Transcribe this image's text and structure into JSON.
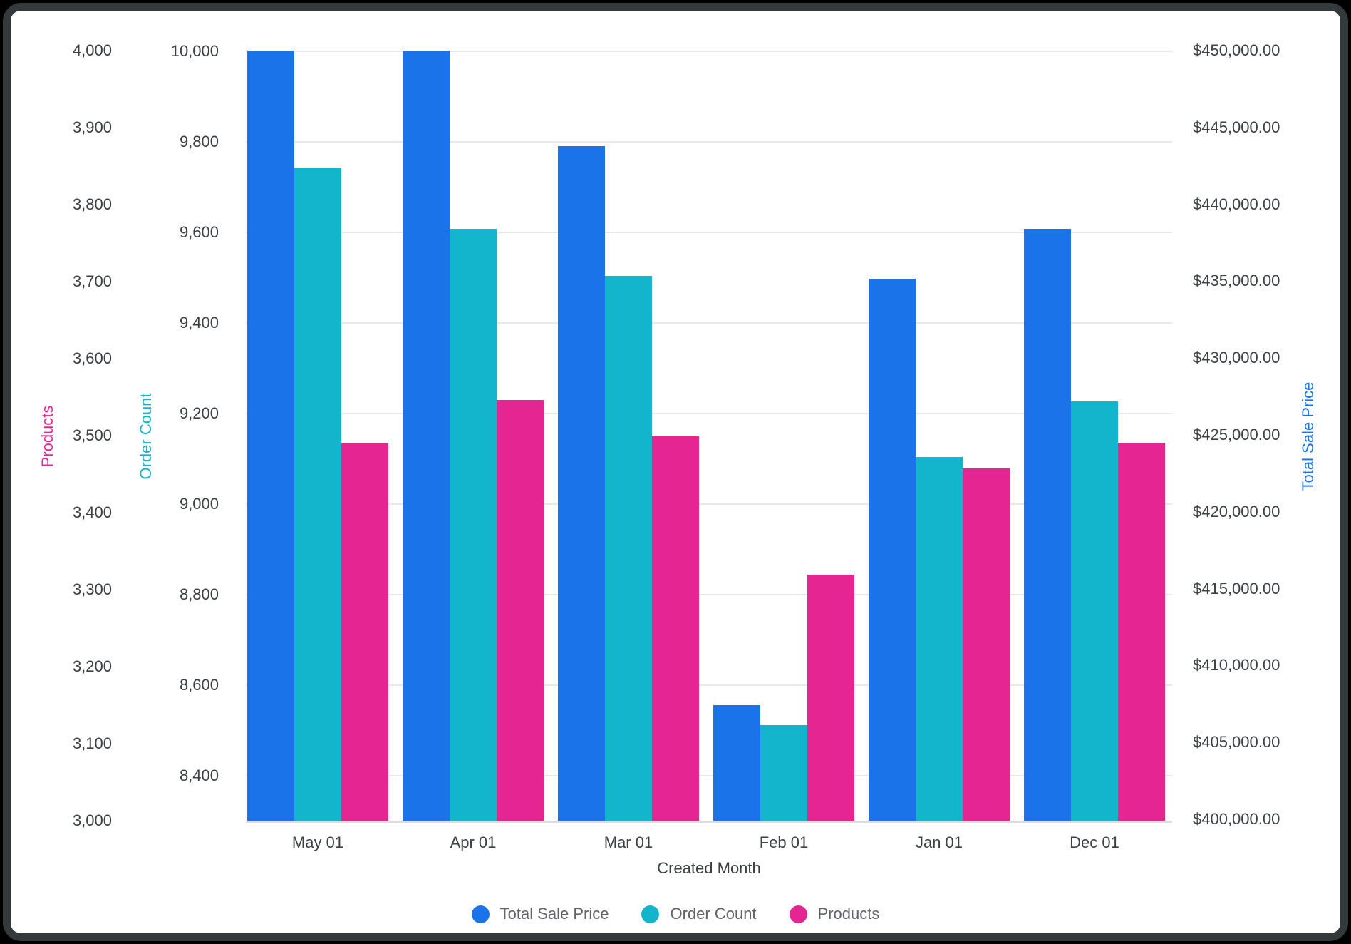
{
  "chart_data": {
    "type": "bar",
    "title": "",
    "xlabel": "Created Month",
    "grid": true,
    "legend_position": "bottom-center",
    "categories": [
      "May 01",
      "Apr 01",
      "Mar 01",
      "Feb 01",
      "Jan 01",
      "Dec 01"
    ],
    "series": [
      {
        "name": "Total Sale Price",
        "axis": "price",
        "color": "#1a73e8",
        "values": [
          450000,
          450000,
          443800,
          407400,
          435150,
          438400
        ]
      },
      {
        "name": "Order Count",
        "axis": "order",
        "color": "#12b5cb",
        "values": [
          9743,
          9608,
          9504,
          8512,
          9104,
          9227
        ]
      },
      {
        "name": "Products",
        "axis": "products",
        "color": "#e52592",
        "values": [
          3490,
          3546,
          3499,
          3319,
          3457,
          3491
        ]
      }
    ],
    "axes": {
      "products": {
        "title": "Products",
        "color": "#e52592",
        "min": 3000,
        "max": 4000,
        "ticks": [
          4000,
          3900,
          3800,
          3700,
          3600,
          3500,
          3400,
          3300,
          3200,
          3100,
          3000
        ],
        "tick_labels": [
          "4,000",
          "3,900",
          "3,800",
          "3,700",
          "3,600",
          "3,500",
          "3,400",
          "3,300",
          "3,200",
          "3,100",
          "3,000"
        ]
      },
      "order": {
        "title": "Order Count",
        "color": "#12b5cb",
        "min": 8300,
        "max": 10000,
        "ticks": [
          10000,
          9800,
          9600,
          9400,
          9200,
          9000,
          8800,
          8600,
          8400
        ],
        "tick_labels": [
          "10,000",
          "9,800",
          "9,600",
          "9,400",
          "9,200",
          "9,000",
          "8,800",
          "8,600",
          "8,400"
        ]
      },
      "price": {
        "title": "Total Sale Price",
        "color": "#1a73e8",
        "min": 400000,
        "max": 450000,
        "ticks": [
          450000,
          445000,
          440000,
          435000,
          430000,
          425000,
          420000,
          415000,
          410000,
          405000,
          400000
        ],
        "tick_labels": [
          "$450,000.00",
          "$445,000.00",
          "$440,000.00",
          "$435,000.00",
          "$430,000.00",
          "$425,000.00",
          "$420,000.00",
          "$415,000.00",
          "$410,000.00",
          "$405,000.00",
          "$400,000.00"
        ]
      }
    },
    "legend": [
      "Total Sale Price",
      "Order Count",
      "Products"
    ]
  },
  "ui": {
    "x_axis_title": "Created Month"
  }
}
